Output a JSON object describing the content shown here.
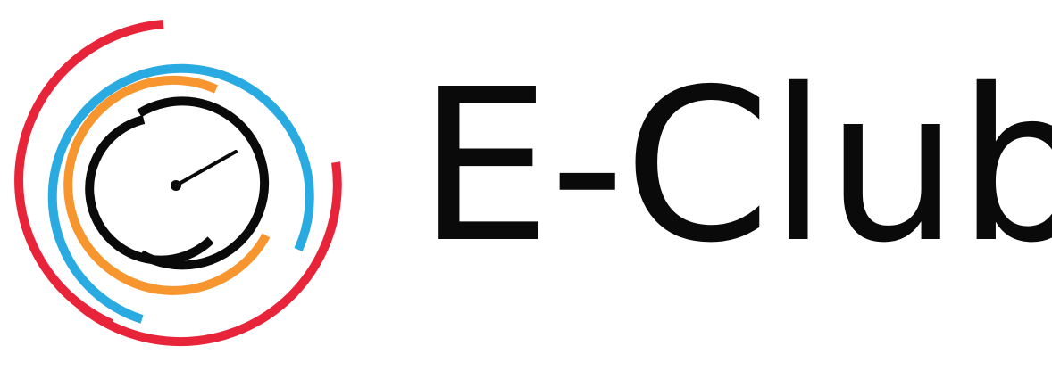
{
  "logo": {
    "wordmark": "E-Club",
    "colors": {
      "red": "#e8243a",
      "blue": "#29abe2",
      "orange": "#f7962e",
      "black": "#0a0a0a"
    },
    "icon": "gauge-rings-icon"
  }
}
